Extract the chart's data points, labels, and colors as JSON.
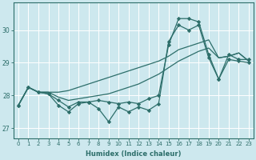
{
  "xlabel": "Humidex (Indice chaleur)",
  "bg_color": "#cde8ee",
  "grid_color": "#ffffff",
  "line_color": "#2d6e6a",
  "ylim": [
    26.7,
    30.85
  ],
  "xlim": [
    -0.5,
    23.5
  ],
  "yticks": [
    27,
    28,
    29,
    30
  ],
  "xticks": [
    0,
    1,
    2,
    3,
    4,
    5,
    6,
    7,
    8,
    9,
    10,
    11,
    12,
    13,
    14,
    15,
    16,
    17,
    18,
    19,
    20,
    21,
    22,
    23
  ],
  "series_with_markers": [
    [
      27.7,
      28.25,
      28.1,
      28.05,
      27.7,
      27.5,
      27.75,
      27.8,
      27.6,
      27.2,
      27.65,
      27.5,
      27.65,
      27.55,
      27.75,
      29.65,
      30.15,
      30.0,
      30.15,
      29.15,
      28.5,
      29.1,
      29.05,
      29.0
    ],
    [
      27.7,
      28.25,
      28.1,
      28.05,
      27.85,
      27.65,
      27.8,
      27.8,
      27.85,
      27.8,
      27.75,
      27.8,
      27.75,
      27.9,
      28.0,
      29.55,
      30.35,
      30.35,
      30.25,
      29.25,
      28.5,
      29.25,
      29.1,
      29.1
    ]
  ],
  "series_lines": [
    [
      27.7,
      28.25,
      28.1,
      28.1,
      28.1,
      28.15,
      28.25,
      28.35,
      28.45,
      28.55,
      28.65,
      28.75,
      28.85,
      28.95,
      29.05,
      29.2,
      29.4,
      29.5,
      29.6,
      29.7,
      29.15,
      29.2,
      29.3,
      29.05
    ],
    [
      27.7,
      28.25,
      28.1,
      28.1,
      27.95,
      27.85,
      27.9,
      27.95,
      28.0,
      28.05,
      28.15,
      28.25,
      28.35,
      28.5,
      28.65,
      28.85,
      29.05,
      29.2,
      29.35,
      29.45,
      29.15,
      29.2,
      29.3,
      29.05
    ]
  ]
}
